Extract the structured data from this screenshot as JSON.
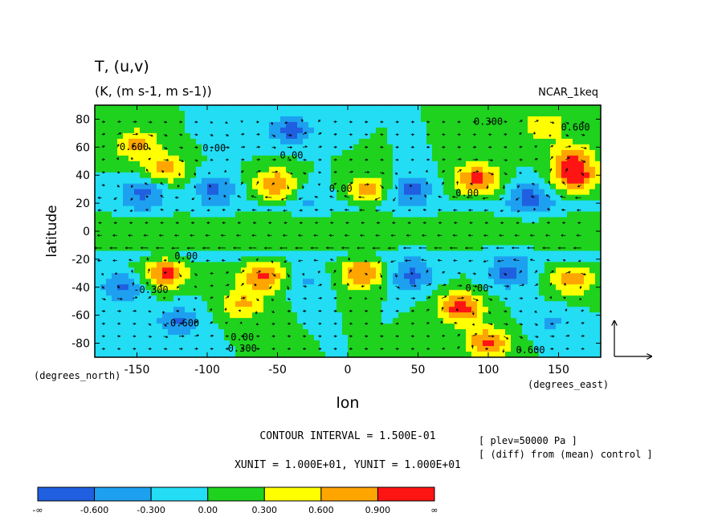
{
  "chart_data": {
    "type": "heatmap",
    "title": "T, (u,v)",
    "units": "(K, (m s-1, m s-1))",
    "dataset": "NCAR_1keq",
    "xlabel": "lon",
    "ylabel": "latitude",
    "x_unit_label": "(degrees_east)",
    "y_unit_label": "(degrees_north)",
    "xlim": [
      -180,
      180
    ],
    "ylim": [
      -90,
      90
    ],
    "xticks": [
      -150,
      -100,
      -50,
      0,
      50,
      100,
      150
    ],
    "yticks": [
      80,
      60,
      40,
      20,
      0,
      -20,
      -40,
      -60,
      -80
    ],
    "contour_interval_text": "CONTOUR INTERVAL = 1.500E-01",
    "unit_vector_text": "XUNIT = 1.000E+01, YUNIT = 1.000E+01",
    "notes": [
      "[ plev=50000 Pa ]",
      "[ (diff) from (mean) control ]"
    ],
    "colorbar": {
      "labels": [
        "-∞",
        "-0.600",
        "-0.300",
        "0.00",
        "0.300",
        "0.600",
        "0.900",
        "∞"
      ],
      "colors": [
        "#1f5fe0",
        "#1ea0f0",
        "#22ddf4",
        "#1ed21e",
        "#ffff00",
        "#ffa500",
        "#ff1414"
      ]
    },
    "contour_labels": [
      {
        "text": "0.300",
        "x": 100,
        "y": 76
      },
      {
        "text": "0.600",
        "x": 162,
        "y": 72
      },
      {
        "text": "0.600",
        "x": -152,
        "y": 58
      },
      {
        "text": "0.00",
        "x": -95,
        "y": 57
      },
      {
        "text": "0.00",
        "x": -40,
        "y": 52
      },
      {
        "text": "0.00",
        "x": -5,
        "y": 28
      },
      {
        "text": "0.00",
        "x": 85,
        "y": 25
      },
      {
        "text": "0.00",
        "x": -115,
        "y": -20
      },
      {
        "text": "-0.300",
        "x": -140,
        "y": -44
      },
      {
        "text": "-0.600",
        "x": -118,
        "y": -68
      },
      {
        "text": "0.00",
        "x": -75,
        "y": -78
      },
      {
        "text": "0.300",
        "x": -75,
        "y": -86
      },
      {
        "text": "0.00",
        "x": 92,
        "y": -43
      },
      {
        "text": "0.600",
        "x": 130,
        "y": -87
      }
    ],
    "anomaly_centers": [
      {
        "x": -145,
        "y": 28,
        "value": -0.7
      },
      {
        "x": -95,
        "y": 30,
        "value": -0.65
      },
      {
        "x": -50,
        "y": 33,
        "value": 0.95
      },
      {
        "x": -30,
        "y": 27,
        "value": -0.35
      },
      {
        "x": 15,
        "y": 30,
        "value": 0.7
      },
      {
        "x": 45,
        "y": 30,
        "value": -0.7
      },
      {
        "x": 92,
        "y": 37,
        "value": 1.0
      },
      {
        "x": 130,
        "y": 25,
        "value": -0.7
      },
      {
        "x": 162,
        "y": 38,
        "value": 1.0
      },
      {
        "x": -130,
        "y": 44,
        "value": 0.75
      },
      {
        "x": 160,
        "y": 52,
        "value": 0.8
      },
      {
        "x": -150,
        "y": 62,
        "value": 0.7
      },
      {
        "x": -40,
        "y": 72,
        "value": -0.7
      },
      {
        "x": -80,
        "y": 70,
        "value": -0.3
      },
      {
        "x": 140,
        "y": 75,
        "value": 0.55
      },
      {
        "x": -130,
        "y": -30,
        "value": 1.0
      },
      {
        "x": -60,
        "y": -32,
        "value": 1.0
      },
      {
        "x": -75,
        "y": -52,
        "value": 0.65
      },
      {
        "x": -30,
        "y": -35,
        "value": -0.35
      },
      {
        "x": 10,
        "y": -30,
        "value": 0.9
      },
      {
        "x": 45,
        "y": -32,
        "value": -0.7
      },
      {
        "x": 115,
        "y": -30,
        "value": -0.7
      },
      {
        "x": 160,
        "y": -35,
        "value": 0.75
      },
      {
        "x": 80,
        "y": -55,
        "value": 1.05
      },
      {
        "x": 100,
        "y": -80,
        "value": 1.0
      },
      {
        "x": -160,
        "y": -40,
        "value": -0.65
      },
      {
        "x": -120,
        "y": -65,
        "value": -0.65
      },
      {
        "x": 145,
        "y": -65,
        "value": -0.35
      }
    ]
  }
}
